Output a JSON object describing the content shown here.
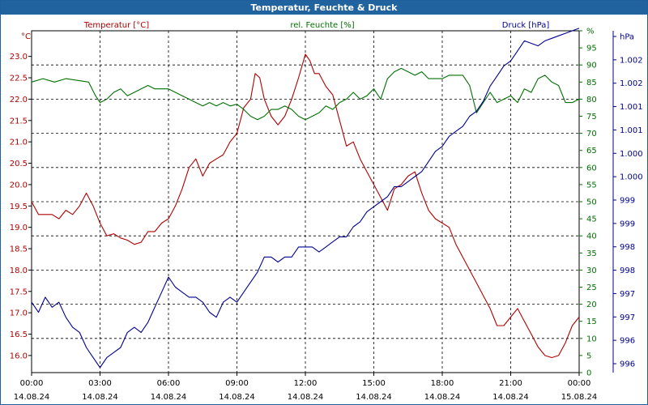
{
  "window": {
    "title": "Temperatur, Feuchte & Druck"
  },
  "chart_data": {
    "type": "line",
    "title": "Temperatur, Feuchte & Druck",
    "grid": true,
    "x_hours": [
      0,
      3,
      6,
      9,
      12,
      15,
      18,
      21,
      24
    ],
    "x_tick_labels": [
      [
        "00:00",
        "14.08.24"
      ],
      [
        "03:00",
        "14.08.24"
      ],
      [
        "06:00",
        "14.08.24"
      ],
      [
        "09:00",
        "14.08.24"
      ],
      [
        "12:00",
        "14.08.24"
      ],
      [
        "15:00",
        "14.08.24"
      ],
      [
        "18:00",
        "14.08.24"
      ],
      [
        "21:00",
        "14.08.24"
      ],
      [
        "00:00",
        "15.08.24"
      ]
    ],
    "axes": {
      "temperature": {
        "label": "Temperatur [°C]",
        "unit": "°C",
        "color": "#b00000",
        "ylim": [
          15.6,
          23.6
        ],
        "ticks": [
          "16.0",
          "16.5",
          "17.0",
          "17.5",
          "18.0",
          "18.5",
          "19.0",
          "19.5",
          "20.0",
          "20.5",
          "21.0",
          "21.5",
          "22.0",
          "22.5",
          "23.0"
        ]
      },
      "humidity": {
        "label": "rel. Feuchte [%]",
        "unit": "%",
        "color": "#007000",
        "ylim": [
          0,
          100
        ],
        "ticks": [
          "0",
          "5",
          "10",
          "15",
          "20",
          "25",
          "30",
          "35",
          "40",
          "45",
          "50",
          "55",
          "60",
          "65",
          "70",
          "75",
          "80",
          "85",
          "90",
          "95",
          "%"
        ]
      },
      "pressure": {
        "label": "Druck [hPa]",
        "unit": "hPa",
        "color": "#000090",
        "ylim": [
          995.8,
          1002.6
        ],
        "ticks": [
          "996",
          "996",
          "997",
          "997",
          "998",
          "998",
          "999",
          "999",
          "1.000",
          "1.000",
          "1.001",
          "1.001",
          "1.002",
          "1.002",
          "hPa"
        ]
      }
    },
    "series": [
      {
        "name": "Temperatur [°C]",
        "axis": "temperature",
        "color": "#b00000",
        "x": [
          0,
          0.3,
          0.6,
          0.9,
          1.2,
          1.5,
          1.8,
          2.1,
          2.4,
          2.7,
          3.0,
          3.3,
          3.6,
          3.9,
          4.2,
          4.5,
          4.8,
          5.1,
          5.4,
          5.7,
          6.0,
          6.3,
          6.6,
          6.9,
          7.2,
          7.5,
          7.8,
          8.1,
          8.4,
          8.7,
          9.0,
          9.3,
          9.6,
          9.8,
          10.0,
          10.2,
          10.5,
          10.8,
          11.1,
          11.4,
          11.7,
          12.0,
          12.2,
          12.4,
          12.6,
          12.9,
          13.2,
          13.5,
          13.8,
          14.1,
          14.4,
          14.7,
          15.0,
          15.3,
          15.6,
          15.9,
          16.2,
          16.5,
          16.8,
          17.1,
          17.4,
          17.7,
          18.0,
          18.3,
          18.6,
          18.9,
          19.2,
          19.5,
          19.8,
          20.1,
          20.4,
          20.7,
          21.0,
          21.3,
          21.6,
          21.9,
          22.2,
          22.5,
          22.8,
          23.1,
          23.4,
          23.7,
          24.0
        ],
        "values": [
          19.6,
          19.3,
          19.3,
          19.3,
          19.2,
          19.4,
          19.3,
          19.5,
          19.8,
          19.5,
          19.1,
          18.8,
          18.85,
          18.75,
          18.7,
          18.6,
          18.65,
          18.9,
          18.9,
          19.1,
          19.2,
          19.5,
          19.9,
          20.4,
          20.6,
          20.2,
          20.5,
          20.6,
          20.7,
          21.0,
          21.2,
          21.8,
          22.0,
          22.6,
          22.5,
          22.0,
          21.6,
          21.4,
          21.6,
          22.0,
          22.5,
          23.05,
          22.9,
          22.6,
          22.6,
          22.3,
          22.1,
          21.5,
          20.9,
          21.0,
          20.6,
          20.3,
          20.0,
          19.7,
          19.4,
          19.9,
          20.0,
          20.2,
          20.3,
          19.8,
          19.4,
          19.2,
          19.1,
          19.0,
          18.6,
          18.3,
          18.0,
          17.7,
          17.4,
          17.1,
          16.7,
          16.7,
          16.9,
          17.1,
          16.8,
          16.5,
          16.2,
          16.0,
          15.95,
          16.0,
          16.3,
          16.7,
          16.9
        ]
      },
      {
        "name": "rel. Feuchte [%]",
        "axis": "humidity",
        "color": "#007000",
        "x": [
          0,
          0.5,
          1.0,
          1.5,
          2.0,
          2.5,
          2.8,
          3.0,
          3.3,
          3.6,
          3.9,
          4.2,
          4.5,
          4.8,
          5.1,
          5.4,
          5.7,
          6.0,
          6.3,
          6.6,
          6.9,
          7.2,
          7.5,
          7.8,
          8.1,
          8.4,
          8.7,
          9.0,
          9.3,
          9.6,
          9.9,
          10.2,
          10.5,
          10.8,
          11.1,
          11.4,
          11.7,
          12.0,
          12.3,
          12.6,
          12.9,
          13.2,
          13.5,
          13.8,
          14.1,
          14.4,
          14.7,
          15.0,
          15.3,
          15.6,
          15.9,
          16.2,
          16.5,
          16.8,
          17.1,
          17.4,
          17.7,
          18.0,
          18.3,
          18.6,
          18.9,
          19.2,
          19.5,
          19.8,
          20.1,
          20.4,
          20.7,
          21.0,
          21.3,
          21.6,
          21.9,
          22.2,
          22.5,
          22.8,
          23.1,
          23.4,
          23.7,
          24.0
        ],
        "values": [
          85,
          86,
          85,
          86,
          85.5,
          85,
          81,
          79,
          80,
          82,
          83,
          81,
          82,
          83,
          84,
          83,
          83,
          83,
          82,
          81,
          80,
          79,
          78,
          79,
          78,
          79,
          78,
          78.5,
          77,
          75,
          74,
          75,
          77,
          77,
          78,
          77,
          75,
          74,
          75,
          76,
          78,
          77,
          79,
          80,
          82,
          80,
          81,
          83,
          80,
          86,
          88,
          89,
          88,
          87,
          88,
          86,
          86,
          86,
          87,
          87,
          87,
          84,
          76,
          79,
          82,
          79,
          80,
          81,
          79,
          83,
          82,
          86,
          87,
          85,
          84,
          79,
          79,
          80
        ]
      },
      {
        "name": "Druck [hPa]",
        "axis": "pressure",
        "color": "#000090",
        "x": [
          0,
          0.3,
          0.6,
          0.9,
          1.2,
          1.5,
          1.8,
          2.1,
          2.4,
          2.7,
          3.0,
          3.3,
          3.6,
          3.9,
          4.2,
          4.5,
          4.8,
          5.1,
          5.4,
          5.7,
          6.0,
          6.3,
          6.6,
          6.9,
          7.2,
          7.5,
          7.8,
          8.1,
          8.4,
          8.7,
          9.0,
          9.3,
          9.6,
          9.9,
          10.2,
          10.5,
          10.8,
          11.1,
          11.4,
          11.7,
          12.0,
          12.3,
          12.6,
          12.9,
          13.2,
          13.5,
          13.8,
          14.1,
          14.4,
          14.7,
          15.0,
          15.3,
          15.6,
          15.9,
          16.2,
          16.5,
          16.8,
          17.1,
          17.4,
          17.7,
          18.0,
          18.3,
          18.6,
          18.9,
          19.2,
          19.5,
          19.8,
          20.1,
          20.4,
          20.7,
          21.0,
          21.3,
          21.6,
          21.9,
          22.2,
          22.5,
          22.8,
          23.1,
          23.4,
          23.7,
          24.0
        ],
        "values": [
          997.2,
          997.0,
          997.3,
          997.1,
          997.2,
          996.9,
          996.7,
          996.6,
          996.3,
          996.1,
          995.9,
          996.1,
          996.2,
          996.3,
          996.6,
          996.7,
          996.6,
          996.8,
          997.1,
          997.4,
          997.7,
          997.5,
          997.4,
          997.3,
          997.3,
          997.2,
          997.0,
          996.9,
          997.2,
          997.3,
          997.2,
          997.4,
          997.6,
          997.8,
          998.1,
          998.1,
          998.0,
          998.1,
          998.1,
          998.3,
          998.3,
          998.3,
          998.2,
          998.3,
          998.4,
          998.5,
          998.5,
          998.7,
          998.8,
          999.0,
          999.1,
          999.2,
          999.3,
          999.5,
          999.5,
          999.6,
          999.7,
          999.8,
          1000.0,
          1000.2,
          1000.3,
          1000.5,
          1000.6,
          1000.7,
          1000.9,
          1001.0,
          1001.2,
          1001.5,
          1001.7,
          1001.9,
          1002.0,
          1002.2,
          1002.4,
          1002.35,
          1002.3,
          1002.4,
          1002.45,
          1002.5,
          1002.55,
          1002.6,
          1002.65
        ]
      }
    ]
  }
}
